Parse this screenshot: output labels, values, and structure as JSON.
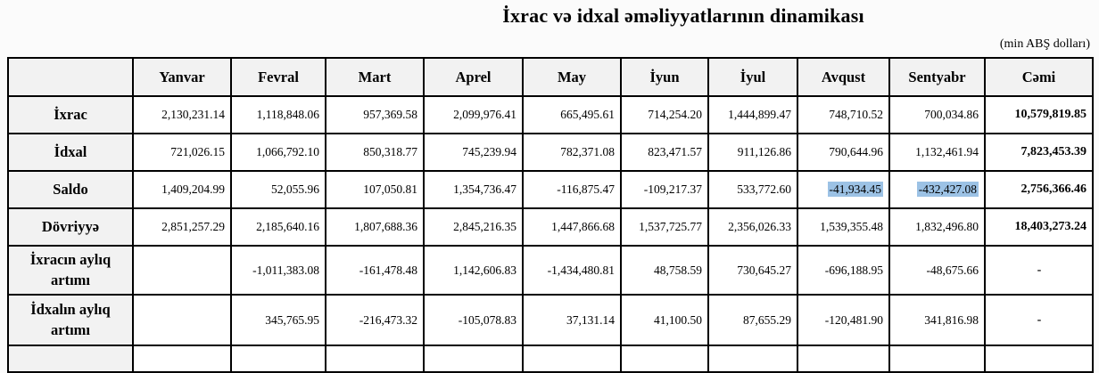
{
  "page": {
    "title": "İxrac və idxal əməliyyatlarının dinamikası",
    "unit_note": "(min ABŞ dolları)"
  },
  "table": {
    "highlight_color": "#9cc2e5",
    "columns": [
      {
        "key": "row-header",
        "label": ""
      },
      {
        "key": "yanvar",
        "label": "Yanvar"
      },
      {
        "key": "fevral",
        "label": "Fevral"
      },
      {
        "key": "mart",
        "label": "Mart"
      },
      {
        "key": "aprel",
        "label": "Aprel"
      },
      {
        "key": "may",
        "label": "May"
      },
      {
        "key": "iyun",
        "label": "İyun"
      },
      {
        "key": "iyul",
        "label": "İyul"
      },
      {
        "key": "avqust",
        "label": "Avqust"
      },
      {
        "key": "sentyabr",
        "label": "Sentyabr"
      },
      {
        "key": "cemi",
        "label": "Cəmi"
      }
    ],
    "rows": [
      {
        "key": "ixrac",
        "label": "İxrac",
        "values": [
          "2,130,231.14",
          "1,118,848.06",
          "957,369.58",
          "2,099,976.41",
          "665,495.61",
          "714,254.20",
          "1,444,899.47",
          "748,710.52",
          "700,034.86"
        ],
        "total": "10,579,819.85"
      },
      {
        "key": "idxal",
        "label": "İdxal",
        "values": [
          "721,026.15",
          "1,066,792.10",
          "850,318.77",
          "745,239.94",
          "782,371.08",
          "823,471.57",
          "911,126.86",
          "790,644.96",
          "1,132,461.94"
        ],
        "total": "7,823,453.39"
      },
      {
        "key": "saldo",
        "label": "Saldo",
        "values": [
          "1,409,204.99",
          "52,055.96",
          "107,050.81",
          "1,354,736.47",
          "-116,875.47",
          "-109,217.37",
          "533,772.60",
          "-41,934.45",
          "-432,427.08"
        ],
        "highlight": [
          7,
          8
        ],
        "total": "2,756,366.46"
      },
      {
        "key": "dovriyye",
        "label": "Dövriyyə",
        "values": [
          "2,851,257.29",
          "2,185,640.16",
          "1,807,688.36",
          "2,845,216.35",
          "1,447,866.68",
          "1,537,725.77",
          "2,356,026.33",
          "1,539,355.48",
          "1,832,496.80"
        ],
        "total": "18,403,273.24"
      },
      {
        "key": "ixracin-ayliq-artimi",
        "label": "İxracın aylıq artımı",
        "values": [
          "",
          "-1,011,383.08",
          "-161,478.48",
          "1,142,606.83",
          "-1,434,480.81",
          "48,758.59",
          "730,645.27",
          "-696,188.95",
          "-48,675.66"
        ],
        "total": "-"
      },
      {
        "key": "idxalin-ayliq-artimi",
        "label": "İdxalın aylıq artımı",
        "values": [
          "",
          "345,765.95",
          "-216,473.32",
          "-105,078.83",
          "37,131.14",
          "41,100.50",
          "87,655.29",
          "-120,481.90",
          "341,816.98"
        ],
        "total": "-"
      }
    ]
  }
}
